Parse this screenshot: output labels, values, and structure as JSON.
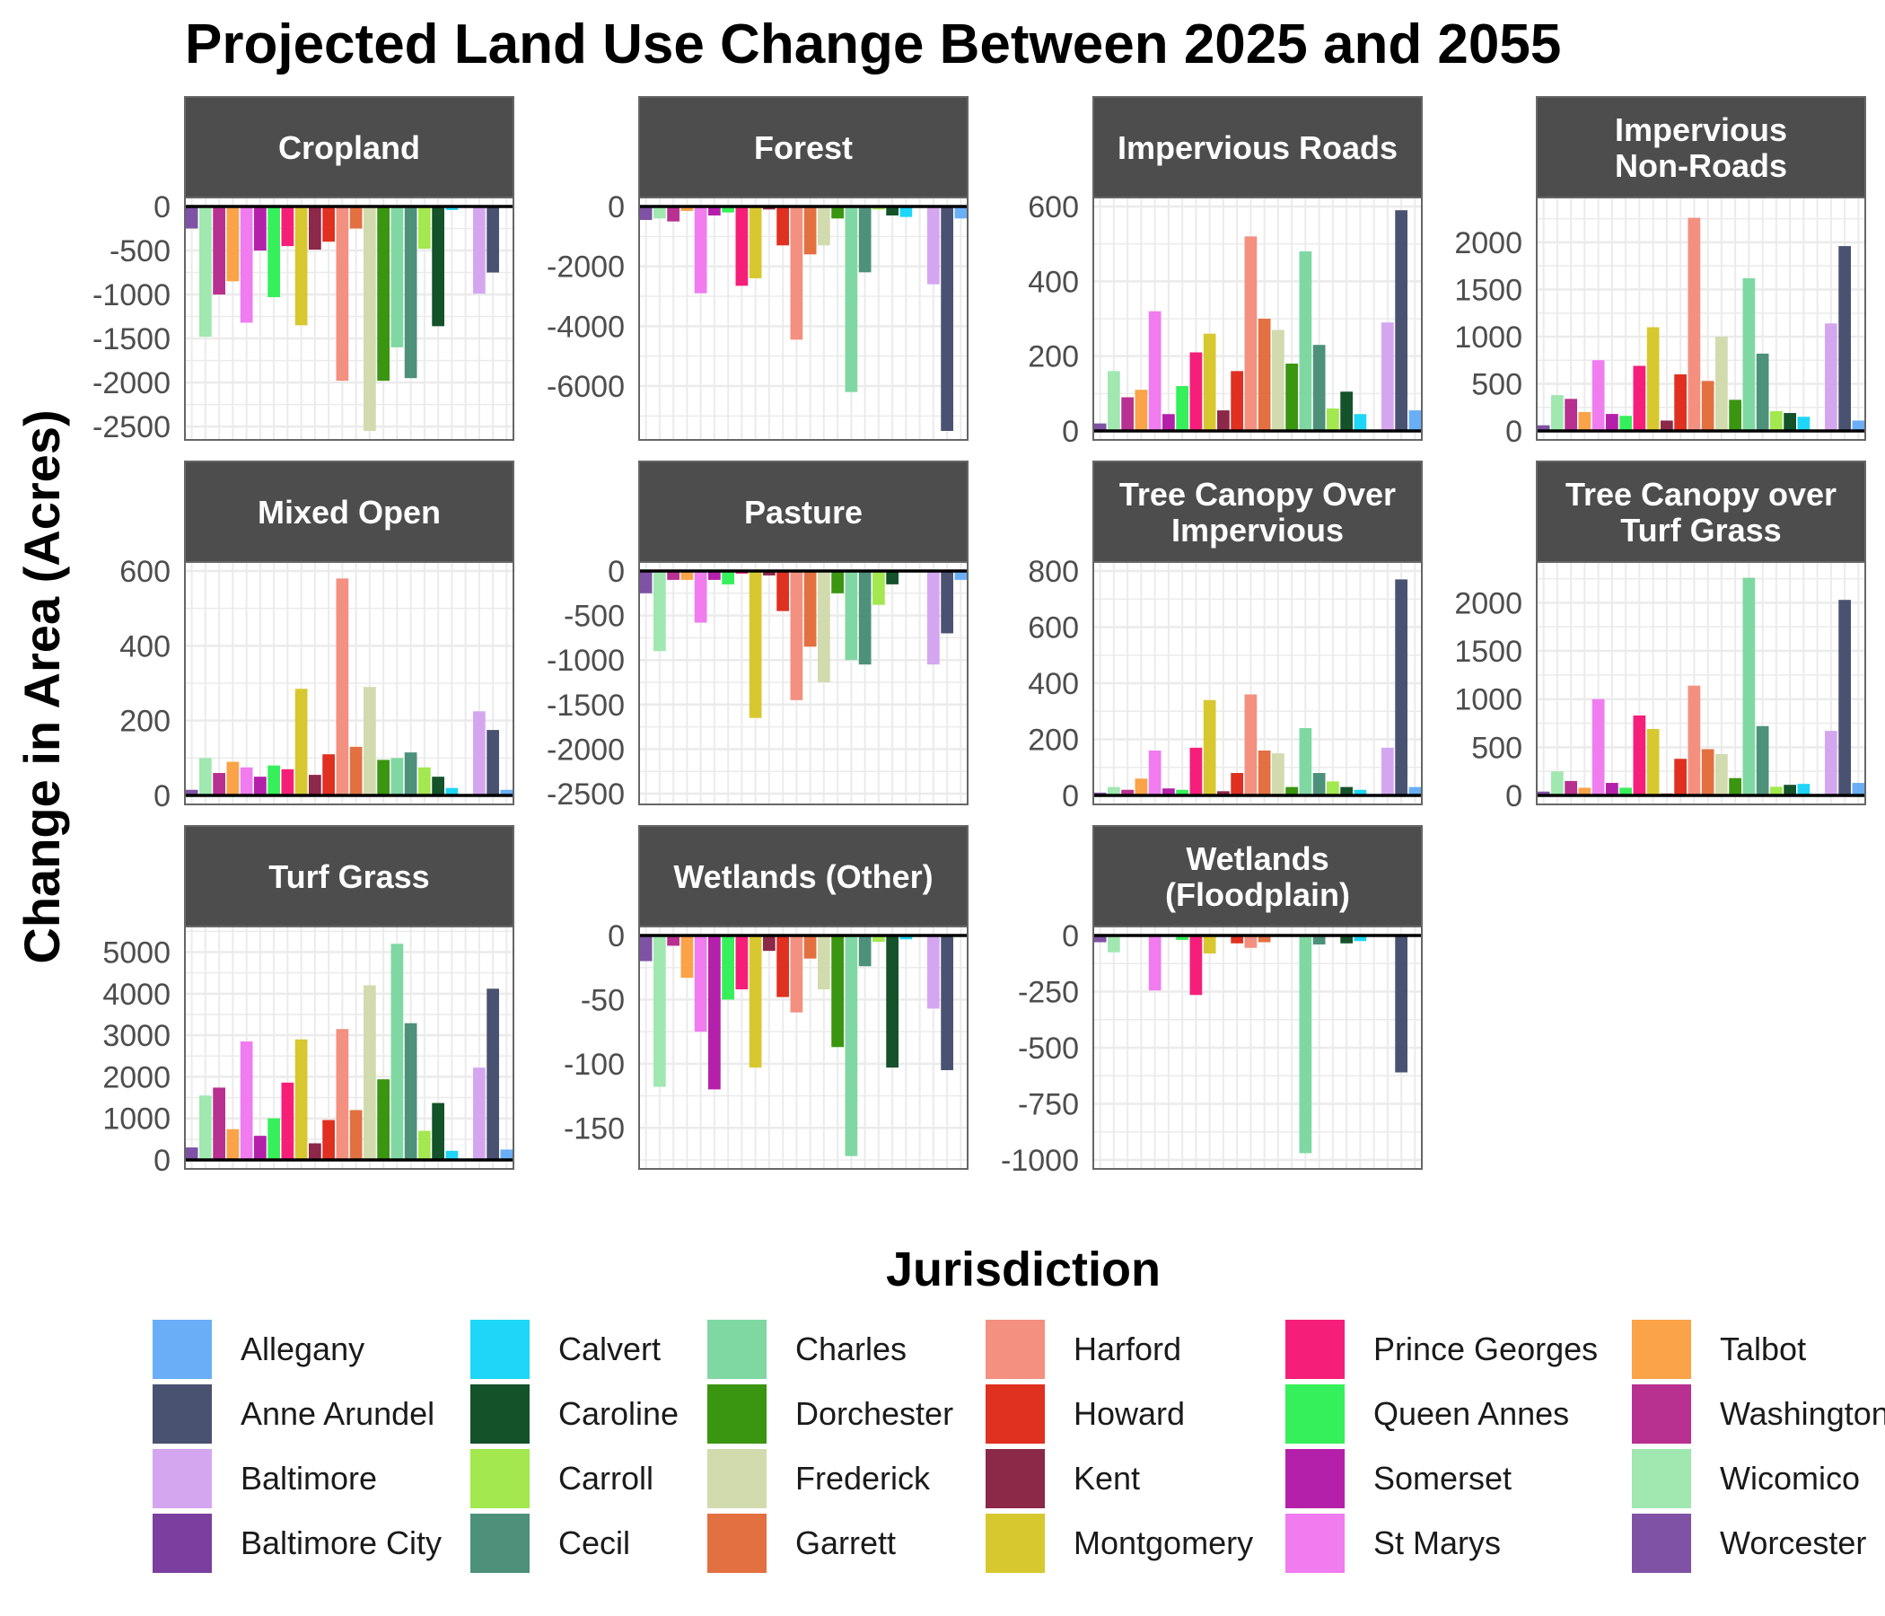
{
  "chart_data": {
    "type": "bar",
    "title": "Projected Land Use Change Between 2025 and 2055",
    "ylabel": "Change in Area (Acres)",
    "legend_title": "Jurisdiction",
    "legend_position": "bottom",
    "grid": true,
    "jurisdictions": [
      "Worcester",
      "Wicomico",
      "Washington",
      "Talbot",
      "St Marys",
      "Somerset",
      "Queen Annes",
      "Prince Georges",
      "Montgomery",
      "Kent",
      "Howard",
      "Harford",
      "Garrett",
      "Frederick",
      "Dorchester",
      "Charles",
      "Cecil",
      "Carroll",
      "Caroline",
      "Calvert",
      "Baltimore City",
      "Baltimore",
      "Anne Arundel",
      "Allegany"
    ],
    "colors": {
      "Allegany": "#6aaef7",
      "Anne Arundel": "#4a5272",
      "Baltimore": "#d5a6f0",
      "Baltimore City": "#7b3fa0",
      "Calvert": "#1ed6f7",
      "Caroline": "#14522a",
      "Carroll": "#a2e84e",
      "Cecil": "#4e917a",
      "Charles": "#7fd8a2",
      "Dorchester": "#3a9510",
      "Frederick": "#d1dbae",
      "Garrett": "#e37040",
      "Harford": "#f39080",
      "Howard": "#e03020",
      "Kent": "#8c2848",
      "Montgomery": "#d8c830",
      "Prince Georges": "#f51f7a",
      "Queen Annes": "#35f05a",
      "Somerset": "#b520aa",
      "St Marys": "#f07cf0",
      "Talbot": "#faa348",
      "Washington": "#b83090",
      "Wicomico": "#a0e8b0",
      "Worcester": "#7f52a5"
    },
    "panels": [
      {
        "title": [
          "Cropland"
        ],
        "ylim": [
          -2550,
          0
        ],
        "ticks": [
          0,
          -500,
          -1000,
          -1500,
          -2000,
          -2500
        ],
        "values": [
          -250,
          -1480,
          -1000,
          -850,
          -1320,
          -500,
          -1030,
          -450,
          -1350,
          -490,
          -400,
          -1980,
          -250,
          -2550,
          -1980,
          -1600,
          -1950,
          -480,
          -1360,
          -40,
          0,
          -990,
          -750,
          0
        ]
      },
      {
        "title": [
          "Forest"
        ],
        "ylim": [
          -7500,
          0
        ],
        "ticks": [
          0,
          -2000,
          -4000,
          -6000
        ],
        "values": [
          -450,
          -400,
          -500,
          -150,
          -2900,
          -300,
          -200,
          -2650,
          -2400,
          -100,
          -1300,
          -4450,
          -1600,
          -1300,
          -400,
          -6200,
          -2200,
          -100,
          -300,
          -350,
          0,
          -2600,
          -7500,
          -400
        ]
      },
      {
        "title": [
          "Impervious Roads"
        ],
        "ylim": [
          0,
          600
        ],
        "ticks": [
          600,
          400,
          200,
          0
        ],
        "values": [
          20,
          160,
          90,
          110,
          320,
          45,
          120,
          210,
          260,
          55,
          160,
          520,
          300,
          270,
          180,
          480,
          230,
          60,
          105,
          45,
          0,
          290,
          590,
          55
        ]
      },
      {
        "title": [
          "Impervious",
          "Non-Roads"
        ],
        "ylim": [
          0,
          2380
        ],
        "ticks": [
          2000,
          1500,
          1000,
          500,
          0
        ],
        "values": [
          60,
          380,
          340,
          200,
          750,
          180,
          160,
          690,
          1100,
          110,
          600,
          2260,
          530,
          1000,
          330,
          1620,
          820,
          210,
          190,
          150,
          0,
          1140,
          1960,
          110
        ]
      },
      {
        "title": [
          "Mixed Open"
        ],
        "ylim": [
          0,
          600
        ],
        "ticks": [
          600,
          400,
          200,
          0
        ],
        "values": [
          15,
          100,
          60,
          90,
          75,
          50,
          80,
          70,
          285,
          55,
          110,
          580,
          130,
          290,
          95,
          100,
          115,
          75,
          50,
          20,
          0,
          225,
          175,
          15
        ]
      },
      {
        "title": [
          "Pasture"
        ],
        "ylim": [
          -2520,
          0
        ],
        "ticks": [
          0,
          -500,
          -1000,
          -1500,
          -2000,
          -2500
        ],
        "values": [
          -250,
          -900,
          -100,
          -100,
          -580,
          -100,
          -150,
          -30,
          -1650,
          -50,
          -450,
          -1450,
          -850,
          -1250,
          -250,
          -1000,
          -1050,
          -380,
          -150,
          -10,
          0,
          -1050,
          -700,
          -100
        ]
      },
      {
        "title": [
          "Tree Canopy Over",
          "Impervious"
        ],
        "ylim": [
          0,
          800
        ],
        "ticks": [
          800,
          600,
          400,
          200,
          0
        ],
        "values": [
          10,
          30,
          20,
          60,
          160,
          25,
          20,
          170,
          340,
          15,
          80,
          360,
          160,
          150,
          30,
          240,
          80,
          50,
          30,
          20,
          0,
          170,
          770,
          30
        ]
      },
      {
        "title": [
          "Tree Canopy over",
          "Turf Grass"
        ],
        "ylim": [
          0,
          2330
        ],
        "ticks": [
          2000,
          1500,
          1000,
          500,
          0
        ],
        "values": [
          40,
          250,
          150,
          80,
          1000,
          130,
          80,
          830,
          690,
          20,
          380,
          1140,
          480,
          430,
          180,
          2260,
          720,
          90,
          110,
          120,
          0,
          670,
          2030,
          130
        ]
      },
      {
        "title": [
          "Turf Grass"
        ],
        "ylim": [
          0,
          5400
        ],
        "ticks": [
          5000,
          4000,
          3000,
          2000,
          1000,
          0
        ],
        "values": [
          300,
          1550,
          1740,
          740,
          2850,
          580,
          1000,
          1860,
          2900,
          400,
          960,
          3150,
          1200,
          4200,
          1940,
          5200,
          3290,
          700,
          1370,
          220,
          0,
          2220,
          4120,
          250
        ]
      },
      {
        "title": [
          "Wetlands (Other)"
        ],
        "ylim": [
          -175,
          0
        ],
        "ticks": [
          0,
          -50,
          -100,
          -150
        ],
        "values": [
          -20,
          -118,
          -8,
          -33,
          -75,
          -120,
          -50,
          -42,
          -103,
          -12,
          -48,
          -60,
          -18,
          -42,
          -87,
          -172,
          -24,
          -5,
          -103,
          -3,
          0,
          -57,
          -105,
          0
        ]
      },
      {
        "title": [
          "Wetlands",
          "(Floodplain)"
        ],
        "ylim": [
          -1000,
          0
        ],
        "ticks": [
          0,
          -250,
          -500,
          -750,
          -1000
        ],
        "values": [
          -30,
          -75,
          0,
          0,
          -245,
          0,
          -20,
          -265,
          -80,
          0,
          -35,
          -55,
          -30,
          0,
          0,
          -970,
          -40,
          0,
          -35,
          -25,
          0,
          0,
          -610,
          0
        ]
      }
    ]
  }
}
